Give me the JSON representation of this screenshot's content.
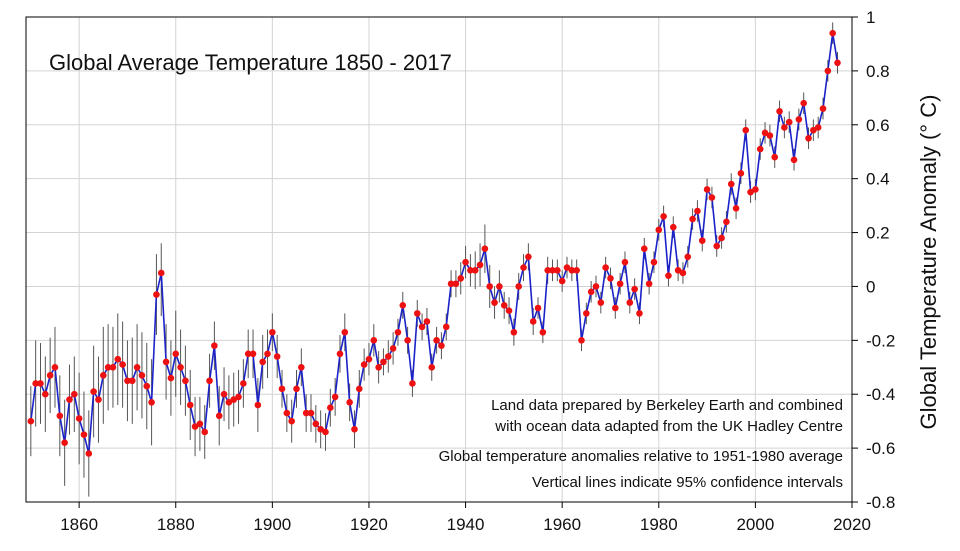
{
  "chart_data": {
    "type": "line",
    "title": "Global Average Temperature 1850 - 2017",
    "ylabel": "Global Temperature Anomaly (° C)",
    "xlabel": "",
    "xlim": [
      1849,
      2020
    ],
    "ylim": [
      -0.8,
      1.0
    ],
    "grid": true,
    "x_ticks": [
      1860,
      1880,
      1900,
      1920,
      1940,
      1960,
      1980,
      2000,
      2020
    ],
    "x_tick_labels": [
      "1860",
      "1880",
      "1900",
      "1920",
      "1940",
      "1960",
      "1980",
      "2000",
      "2020"
    ],
    "y_ticks": [
      -0.8,
      -0.6,
      -0.4,
      -0.2,
      0,
      0.2,
      0.4,
      0.6,
      0.8,
      1
    ],
    "y_tick_labels": [
      "-0.8",
      "-0.6",
      "-0.4",
      "-0.2",
      "0",
      "0.2",
      "0.4",
      "0.6",
      "0.8",
      "1"
    ],
    "y_axis_side": "right",
    "colors": {
      "line": "#1a22c8",
      "points": "#ee1111",
      "error_bars": "#555555",
      "grid": "#d3d3d3"
    },
    "annotations": [
      "Land data prepared by Berkeley Earth and combined",
      "with ocean data adapted from the UK Hadley Centre",
      "Global temperature anomalies relative to 1951-1980 average",
      "Vertical lines indicate 95% confidence intervals"
    ],
    "series": [
      {
        "x": [
          1850,
          1851,
          1852,
          1853,
          1854,
          1855,
          1856,
          1857,
          1858,
          1859,
          1860,
          1861,
          1862,
          1863,
          1864,
          1865,
          1866,
          1867,
          1868,
          1869,
          1870,
          1871,
          1872,
          1873,
          1874,
          1875,
          1876,
          1877,
          1878,
          1879,
          1880,
          1881,
          1882,
          1883,
          1884,
          1885,
          1886,
          1887,
          1888,
          1889,
          1890,
          1891,
          1892,
          1893,
          1894,
          1895,
          1896,
          1897,
          1898,
          1899,
          1900,
          1901,
          1902,
          1903,
          1904,
          1905,
          1906,
          1907,
          1908,
          1909,
          1910,
          1911,
          1912,
          1913,
          1914,
          1915,
          1916,
          1917,
          1918,
          1919,
          1920,
          1921,
          1922,
          1923,
          1924,
          1925,
          1926,
          1927,
          1928,
          1929,
          1930,
          1931,
          1932,
          1933,
          1934,
          1935,
          1936,
          1937,
          1938,
          1939,
          1940,
          1941,
          1942,
          1943,
          1944,
          1945,
          1946,
          1947,
          1948,
          1949,
          1950,
          1951,
          1952,
          1953,
          1954,
          1955,
          1956,
          1957,
          1958,
          1959,
          1960,
          1961,
          1962,
          1963,
          1964,
          1965,
          1966,
          1967,
          1968,
          1969,
          1970,
          1971,
          1972,
          1973,
          1974,
          1975,
          1976,
          1977,
          1978,
          1979,
          1980,
          1981,
          1982,
          1983,
          1984,
          1985,
          1986,
          1987,
          1988,
          1989,
          1990,
          1991,
          1992,
          1993,
          1994,
          1995,
          1996,
          1997,
          1998,
          1999,
          2000,
          2001,
          2002,
          2003,
          2004,
          2005,
          2006,
          2007,
          2008,
          2009,
          2010,
          2011,
          2012,
          2013,
          2014,
          2015,
          2016,
          2017
        ],
        "values": [
          -0.5,
          -0.36,
          -0.36,
          -0.4,
          -0.33,
          -0.3,
          -0.48,
          -0.58,
          -0.42,
          -0.4,
          -0.49,
          -0.55,
          -0.62,
          -0.39,
          -0.42,
          -0.33,
          -0.3,
          -0.3,
          -0.27,
          -0.29,
          -0.35,
          -0.35,
          -0.3,
          -0.33,
          -0.37,
          -0.43,
          -0.03,
          0.05,
          -0.28,
          -0.34,
          -0.25,
          -0.3,
          -0.35,
          -0.44,
          -0.52,
          -0.51,
          -0.54,
          -0.35,
          -0.22,
          -0.48,
          -0.4,
          -0.43,
          -0.42,
          -0.41,
          -0.36,
          -0.25,
          -0.25,
          -0.44,
          -0.28,
          -0.25,
          -0.17,
          -0.26,
          -0.38,
          -0.47,
          -0.5,
          -0.38,
          -0.3,
          -0.47,
          -0.47,
          -0.51,
          -0.53,
          -0.54,
          -0.45,
          -0.41,
          -0.25,
          -0.17,
          -0.43,
          -0.53,
          -0.38,
          -0.29,
          -0.27,
          -0.2,
          -0.3,
          -0.28,
          -0.26,
          -0.23,
          -0.17,
          -0.07,
          -0.2,
          -0.36,
          -0.1,
          -0.15,
          -0.13,
          -0.3,
          -0.2,
          -0.22,
          -0.15,
          0.01,
          0.01,
          0.03,
          0.09,
          0.06,
          0.06,
          0.08,
          0.14,
          0.0,
          -0.06,
          0.0,
          -0.07,
          -0.09,
          -0.17,
          0.0,
          0.07,
          0.11,
          -0.13,
          -0.08,
          -0.17,
          0.06,
          0.06,
          0.06,
          0.02,
          0.07,
          0.06,
          0.06,
          -0.2,
          -0.1,
          -0.02,
          0.0,
          -0.06,
          0.07,
          0.03,
          -0.08,
          0.01,
          0.09,
          -0.06,
          -0.01,
          -0.1,
          0.14,
          0.01,
          0.09,
          0.21,
          0.26,
          0.04,
          0.22,
          0.06,
          0.05,
          0.11,
          0.25,
          0.28,
          0.17,
          0.36,
          0.33,
          0.15,
          0.18,
          0.24,
          0.38,
          0.29,
          0.42,
          0.58,
          0.35,
          0.36,
          0.51,
          0.57,
          0.56,
          0.48,
          0.65,
          0.59,
          0.61,
          0.47,
          0.62,
          0.68,
          0.55,
          0.58,
          0.59,
          0.66,
          0.8,
          0.94,
          0.83
        ],
        "ci_low": [
          -0.63,
          -0.52,
          -0.51,
          -0.54,
          -0.47,
          -0.45,
          -0.63,
          -0.74,
          -0.55,
          -0.54,
          -0.66,
          -0.71,
          -0.78,
          -0.56,
          -0.58,
          -0.51,
          -0.46,
          -0.45,
          -0.44,
          -0.45,
          -0.5,
          -0.51,
          -0.46,
          -0.49,
          -0.53,
          -0.59,
          -0.18,
          -0.11,
          -0.42,
          -0.48,
          -0.41,
          -0.44,
          -0.48,
          -0.57,
          -0.63,
          -0.61,
          -0.64,
          -0.45,
          -0.31,
          -0.59,
          -0.5,
          -0.53,
          -0.52,
          -0.51,
          -0.45,
          -0.34,
          -0.34,
          -0.54,
          -0.38,
          -0.34,
          -0.24,
          -0.34,
          -0.45,
          -0.54,
          -0.58,
          -0.45,
          -0.37,
          -0.54,
          -0.54,
          -0.58,
          -0.6,
          -0.61,
          -0.52,
          -0.48,
          -0.32,
          -0.24,
          -0.5,
          -0.6,
          -0.45,
          -0.35,
          -0.33,
          -0.26,
          -0.36,
          -0.33,
          -0.32,
          -0.29,
          -0.22,
          -0.12,
          -0.25,
          -0.41,
          -0.15,
          -0.2,
          -0.18,
          -0.35,
          -0.25,
          -0.27,
          -0.2,
          -0.04,
          -0.04,
          -0.03,
          0.03,
          0.0,
          -0.01,
          0.0,
          0.05,
          -0.08,
          -0.12,
          -0.06,
          -0.12,
          -0.14,
          -0.22,
          -0.05,
          0.02,
          0.06,
          -0.18,
          -0.12,
          -0.21,
          0.01,
          0.02,
          0.02,
          -0.02,
          0.03,
          0.02,
          0.02,
          -0.24,
          -0.14,
          -0.06,
          -0.04,
          -0.1,
          0.03,
          -0.01,
          -0.12,
          -0.03,
          0.05,
          -0.1,
          -0.05,
          -0.14,
          0.1,
          -0.03,
          0.05,
          0.17,
          0.22,
          0.0,
          0.18,
          0.02,
          0.01,
          0.07,
          0.21,
          0.24,
          0.13,
          0.32,
          0.29,
          0.11,
          0.14,
          0.2,
          0.34,
          0.25,
          0.38,
          0.54,
          0.31,
          0.32,
          0.47,
          0.53,
          0.52,
          0.44,
          0.61,
          0.55,
          0.57,
          0.43,
          0.58,
          0.64,
          0.51,
          0.54,
          0.55,
          0.62,
          0.76,
          0.9,
          0.79
        ],
        "ci_high": [
          -0.37,
          -0.2,
          -0.21,
          -0.26,
          -0.19,
          -0.15,
          -0.33,
          -0.42,
          -0.29,
          -0.26,
          -0.32,
          -0.39,
          -0.46,
          -0.22,
          -0.26,
          -0.15,
          -0.14,
          -0.15,
          -0.1,
          -0.13,
          -0.2,
          -0.19,
          -0.14,
          -0.17,
          -0.21,
          -0.27,
          0.12,
          0.16,
          -0.14,
          -0.2,
          -0.09,
          -0.16,
          -0.22,
          -0.31,
          -0.41,
          -0.41,
          -0.44,
          -0.25,
          -0.13,
          -0.37,
          -0.3,
          -0.33,
          -0.32,
          -0.31,
          -0.27,
          -0.16,
          -0.16,
          -0.34,
          -0.18,
          -0.16,
          -0.1,
          -0.18,
          -0.31,
          -0.4,
          -0.42,
          -0.31,
          -0.23,
          -0.4,
          -0.4,
          -0.44,
          -0.46,
          -0.47,
          -0.38,
          -0.34,
          -0.18,
          -0.1,
          -0.36,
          -0.46,
          -0.31,
          -0.23,
          -0.21,
          -0.14,
          -0.24,
          -0.23,
          -0.2,
          -0.17,
          -0.12,
          -0.02,
          -0.15,
          -0.31,
          -0.05,
          -0.1,
          -0.08,
          -0.25,
          -0.15,
          -0.17,
          -0.1,
          0.06,
          0.06,
          0.09,
          0.15,
          0.12,
          0.13,
          0.16,
          0.23,
          0.08,
          0.0,
          0.06,
          -0.02,
          -0.04,
          -0.12,
          0.05,
          0.12,
          0.16,
          -0.08,
          -0.04,
          -0.13,
          0.11,
          0.1,
          0.1,
          0.06,
          0.11,
          0.1,
          0.1,
          -0.16,
          -0.06,
          0.02,
          0.04,
          -0.02,
          0.11,
          0.07,
          -0.04,
          0.05,
          0.13,
          -0.02,
          0.03,
          -0.06,
          0.18,
          0.05,
          0.13,
          0.25,
          0.3,
          0.08,
          0.26,
          0.1,
          0.09,
          0.15,
          0.29,
          0.32,
          0.21,
          0.4,
          0.37,
          0.19,
          0.22,
          0.28,
          0.42,
          0.33,
          0.46,
          0.62,
          0.39,
          0.4,
          0.55,
          0.61,
          0.6,
          0.52,
          0.69,
          0.63,
          0.65,
          0.51,
          0.66,
          0.72,
          0.59,
          0.62,
          0.63,
          0.7,
          0.84,
          0.98,
          0.87
        ]
      }
    ]
  }
}
